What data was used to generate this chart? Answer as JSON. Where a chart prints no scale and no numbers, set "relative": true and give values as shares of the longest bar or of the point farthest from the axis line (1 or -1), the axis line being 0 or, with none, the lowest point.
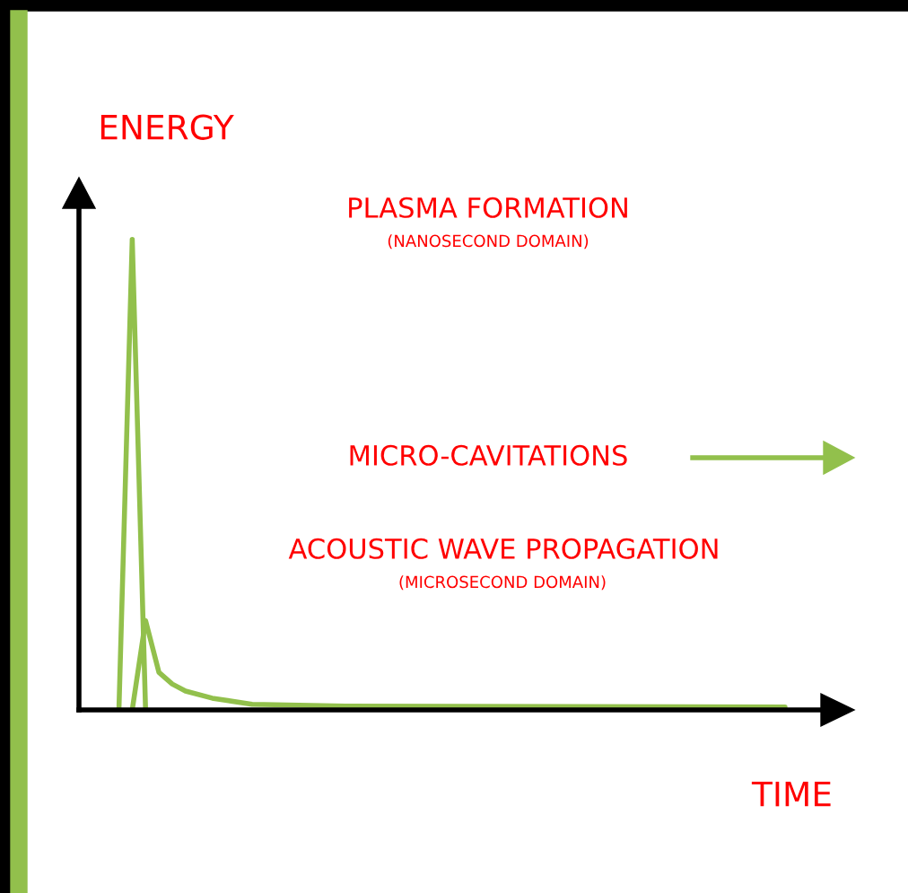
{
  "chart_data": {
    "type": "line",
    "relative": true,
    "xlabel": "TIME",
    "ylabel": "ENERGY",
    "legend": false,
    "categories": [
      null,
      null,
      null,
      null,
      null,
      null,
      null,
      null,
      null,
      null,
      null,
      null,
      null,
      null,
      null,
      null,
      null,
      null,
      null,
      null,
      null,
      null,
      null,
      null,
      null,
      null,
      null,
      null,
      null,
      null,
      null,
      null,
      null,
      null,
      null,
      null,
      null,
      null,
      null,
      null,
      null,
      null,
      null,
      null,
      null,
      null,
      null,
      null,
      null,
      null,
      null,
      null,
      null,
      null
    ],
    "series": [
      {
        "color": "#92c04c",
        "values": [
          null,
          null,
          null,
          0,
          1,
          0,
          null,
          null,
          null,
          null,
          null,
          null,
          null,
          null,
          null,
          null,
          null,
          null,
          null,
          null,
          null,
          null,
          null,
          null,
          null,
          null,
          null,
          null,
          null,
          null,
          null,
          null,
          null,
          null,
          null,
          null,
          null,
          null,
          null,
          null,
          null,
          null,
          null,
          null,
          null,
          null,
          null,
          null,
          null,
          null,
          null,
          null,
          null,
          null
        ]
      },
      {
        "color": "#92c04c",
        "values": [
          null,
          null,
          null,
          null,
          0,
          0.19,
          0.08,
          0.055,
          0.04,
          null,
          0.025,
          null,
          null,
          0.012,
          null,
          null,
          null,
          null,
          null,
          null,
          0.008,
          null,
          null,
          null,
          null,
          null,
          null,
          null,
          null,
          null,
          null,
          null,
          null,
          null,
          null,
          null,
          null,
          null,
          null,
          null,
          null,
          null,
          null,
          null,
          null,
          null,
          null,
          null,
          null,
          null,
          null,
          null,
          null,
          0.006
        ]
      }
    ],
    "annotations": [
      "PLASMA FORMATION",
      "(NANOSECOND DOMAIN)",
      "MICRO-CAVITATIONS",
      "ACOUSTIC WAVE PROPAGATION",
      "(MICROSECOND DOMAIN)"
    ]
  }
}
